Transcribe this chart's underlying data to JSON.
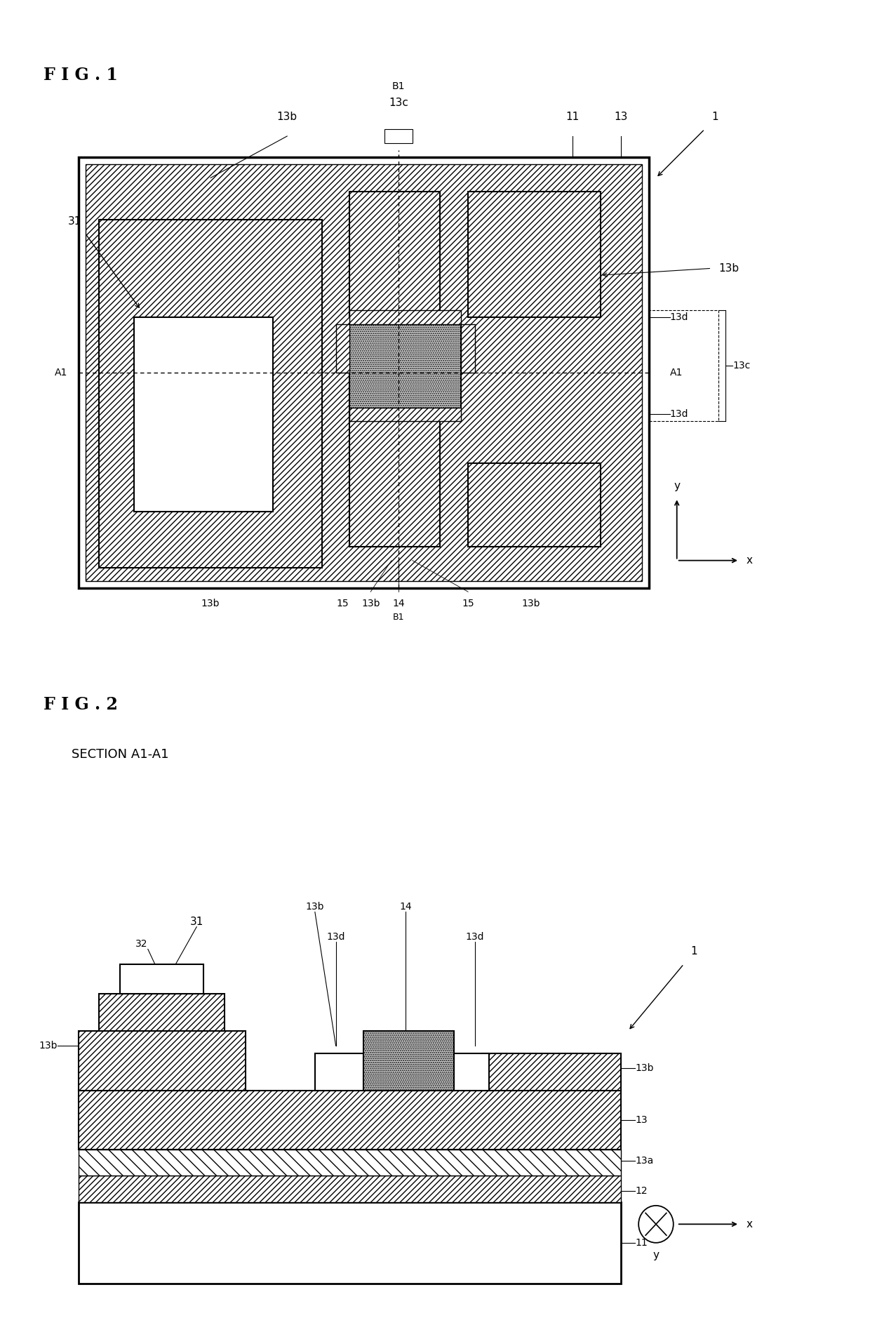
{
  "fig_title": "F I G . 1",
  "fig2_title": "F I G . 2",
  "fig2_subtitle": "SECTION A1-A1",
  "background_color": "#ffffff",
  "label_color": "#000000"
}
